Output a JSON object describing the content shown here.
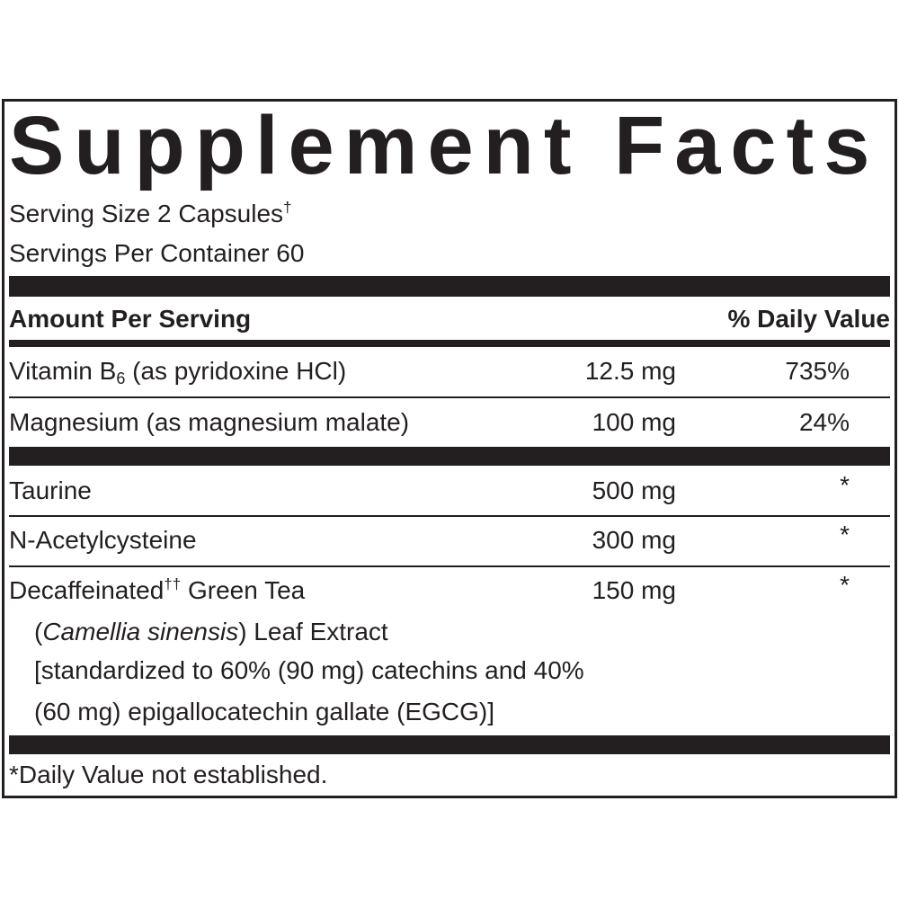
{
  "title": "Supplement Facts",
  "serving_size": {
    "text": "Serving Size 2 Capsules",
    "symbol": "†"
  },
  "servings_per_container": "Servings Per Container 60",
  "header": {
    "amount": "Amount Per Serving",
    "daily_value": "% Daily Value"
  },
  "rows": [
    {
      "name": "Vitamin B",
      "subscript": "6",
      "name_rest": " (as pyridoxine HCl)",
      "amount": "12.5 mg",
      "daily_value": "735%"
    },
    {
      "name": "Magnesium (as magnesium malate)",
      "amount": "100 mg",
      "daily_value": "24%"
    },
    {
      "name": "Taurine",
      "amount": "500 mg",
      "daily_value": "*"
    },
    {
      "name": "N-Acetylcysteine",
      "amount": "300 mg",
      "daily_value": "*"
    },
    {
      "name": "Decaffeinated",
      "superscript": "††",
      "name_rest": " Green Tea",
      "amount": "150 mg",
      "daily_value": "*",
      "detail": {
        "open": "(",
        "species": "Camellia sinensis",
        "close": ") Leaf Extract",
        "line2": "[standardized to 60% (90 mg) catechins and 40%",
        "line3": "(60 mg) epigallocatechin gallate (EGCG)]"
      }
    }
  ],
  "footnote": "*Daily Value not established."
}
